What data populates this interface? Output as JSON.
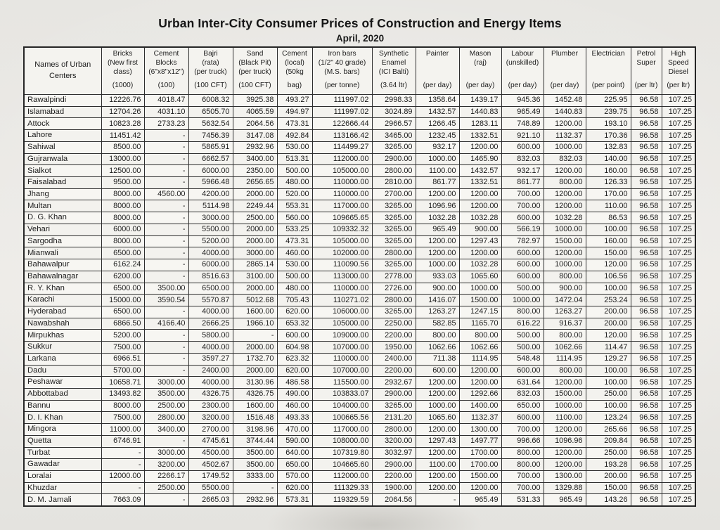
{
  "page": {
    "title": "Urban Inter-City Consumer Prices of Construction and Energy Items",
    "subtitle": "April, 2020"
  },
  "table": {
    "row_header_label": "Names of Urban\nCenters",
    "columns": [
      {
        "name": "Bricks\n(New first\nclass)",
        "unit": "(1000)"
      },
      {
        "name": "Cement\nBlocks\n(6\"x8\"x12\")",
        "unit": "(100)"
      },
      {
        "name": "Bajri\n(rata)\n(per truck)",
        "unit": "(100 CFT)"
      },
      {
        "name": "Sand\n(Black Pit)\n(per truck)",
        "unit": "(100 CFT)"
      },
      {
        "name": "Cement\n(local)\n(50kg",
        "unit": "bag)"
      },
      {
        "name": "Iron bars\n(1/2\" 40 grade)\n(M.S. bars)",
        "unit": "(per tonne)"
      },
      {
        "name": "Synthetic\nEnamel\n(ICI Balti)",
        "unit": "(3.64 ltr)"
      },
      {
        "name": "Painter",
        "unit": "(per day)"
      },
      {
        "name": "Mason\n(raj)",
        "unit": "(per day)"
      },
      {
        "name": "Labour\n(unskilled)",
        "unit": "(per day)"
      },
      {
        "name": "Plumber",
        "unit": "(per day)"
      },
      {
        "name": "Electrician",
        "unit": "(per point)"
      },
      {
        "name": "Petrol\nSuper",
        "unit": "(per ltr)"
      },
      {
        "name": "High\nSpeed\nDiesel",
        "unit": "(per ltr)"
      }
    ],
    "rows": [
      {
        "city": "Rawalpindi",
        "values": [
          "12226.76",
          "4018.47",
          "6008.32",
          "3925.38",
          "493.27",
          "111997.02",
          "2998.33",
          "1358.64",
          "1439.17",
          "945.36",
          "1452.48",
          "225.95",
          "96.58",
          "107.25"
        ]
      },
      {
        "city": "Islamabad",
        "values": [
          "12704.26",
          "4031.10",
          "6505.70",
          "4065.59",
          "494.97",
          "111997.02",
          "3024.89",
          "1432.57",
          "1440.83",
          "965.49",
          "1440.83",
          "239.75",
          "96.58",
          "107.25"
        ]
      },
      {
        "city": "Attock",
        "values": [
          "10823.28",
          "2733.23",
          "5632.54",
          "2064.56",
          "473.31",
          "122666.44",
          "2966.57",
          "1266.45",
          "1283.11",
          "748.89",
          "1200.00",
          "193.10",
          "96.58",
          "107.25"
        ]
      },
      {
        "city": "Lahore",
        "values": [
          "11451.42",
          "-",
          "7456.39",
          "3147.08",
          "492.84",
          "113166.42",
          "3465.00",
          "1232.45",
          "1332.51",
          "921.10",
          "1132.37",
          "170.36",
          "96.58",
          "107.25"
        ]
      },
      {
        "city": "Sahiwal",
        "values": [
          "8500.00",
          "-",
          "5865.91",
          "2932.96",
          "530.00",
          "114499.27",
          "3265.00",
          "932.17",
          "1200.00",
          "600.00",
          "1000.00",
          "132.83",
          "96.58",
          "107.25"
        ]
      },
      {
        "city": "Gujranwala",
        "values": [
          "13000.00",
          "-",
          "6662.57",
          "3400.00",
          "513.31",
          "112000.00",
          "2900.00",
          "1000.00",
          "1465.90",
          "832.03",
          "832.03",
          "140.00",
          "96.58",
          "107.25"
        ]
      },
      {
        "city": "Sialkot",
        "values": [
          "12500.00",
          "-",
          "6000.00",
          "2350.00",
          "500.00",
          "105000.00",
          "2800.00",
          "1100.00",
          "1432.57",
          "932.17",
          "1200.00",
          "160.00",
          "96.58",
          "107.25"
        ]
      },
      {
        "city": "Faisalabad",
        "values": [
          "9500.00",
          "-",
          "5966.48",
          "2656.65",
          "480.00",
          "110000.00",
          "2810.00",
          "861.77",
          "1332.51",
          "861.77",
          "800.00",
          "126.33",
          "96.58",
          "107.25"
        ]
      },
      {
        "city": "Jhang",
        "values": [
          "8000.00",
          "4560.00",
          "4200.00",
          "2000.00",
          "520.00",
          "110000.00",
          "2700.00",
          "1200.00",
          "1200.00",
          "700.00",
          "1200.00",
          "170.00",
          "96.58",
          "107.25"
        ]
      },
      {
        "city": "Multan",
        "values": [
          "8000.00",
          "-",
          "5114.98",
          "2249.44",
          "553.31",
          "117000.00",
          "3265.00",
          "1096.96",
          "1200.00",
          "700.00",
          "1200.00",
          "110.00",
          "96.58",
          "107.25"
        ]
      },
      {
        "city": "D. G. Khan",
        "values": [
          "8000.00",
          "-",
          "3000.00",
          "2500.00",
          "560.00",
          "109665.65",
          "3265.00",
          "1032.28",
          "1032.28",
          "600.00",
          "1032.28",
          "86.53",
          "96.58",
          "107.25"
        ]
      },
      {
        "city": "Vehari",
        "values": [
          "6000.00",
          "-",
          "5500.00",
          "2000.00",
          "533.25",
          "109332.32",
          "3265.00",
          "965.49",
          "900.00",
          "566.19",
          "1000.00",
          "100.00",
          "96.58",
          "107.25"
        ]
      },
      {
        "city": "Sargodha",
        "values": [
          "8000.00",
          "-",
          "5200.00",
          "2000.00",
          "473.31",
          "105000.00",
          "3265.00",
          "1200.00",
          "1297.43",
          "782.97",
          "1500.00",
          "160.00",
          "96.58",
          "107.25"
        ]
      },
      {
        "city": "Mianwali",
        "values": [
          "6500.00",
          "-",
          "4000.00",
          "3000.00",
          "460.00",
          "102000.00",
          "2800.00",
          "1200.00",
          "1200.00",
          "600.00",
          "1200.00",
          "150.00",
          "96.58",
          "107.25"
        ]
      },
      {
        "city": "Bahawalpur",
        "values": [
          "6162.24",
          "-",
          "6000.00",
          "2865.14",
          "530.00",
          "110090.56",
          "3265.00",
          "1000.00",
          "1032.28",
          "600.00",
          "1000.00",
          "120.00",
          "96.58",
          "107.25"
        ]
      },
      {
        "city": "Bahawalnagar",
        "values": [
          "6200.00",
          "-",
          "8516.63",
          "3100.00",
          "500.00",
          "113000.00",
          "2778.00",
          "933.03",
          "1065.60",
          "600.00",
          "800.00",
          "106.56",
          "96.58",
          "107.25"
        ]
      },
      {
        "city": "R. Y. Khan",
        "values": [
          "6500.00",
          "3500.00",
          "6500.00",
          "2000.00",
          "480.00",
          "110000.00",
          "2726.00",
          "900.00",
          "1000.00",
          "500.00",
          "900.00",
          "100.00",
          "96.58",
          "107.25"
        ]
      },
      {
        "city": "Karachi",
        "values": [
          "15000.00",
          "3590.54",
          "5570.87",
          "5012.68",
          "705.43",
          "110271.02",
          "2800.00",
          "1416.07",
          "1500.00",
          "1000.00",
          "1472.04",
          "253.24",
          "96.58",
          "107.25"
        ]
      },
      {
        "city": "Hyderabad",
        "values": [
          "6500.00",
          "-",
          "4000.00",
          "1600.00",
          "620.00",
          "106000.00",
          "3265.00",
          "1263.27",
          "1247.15",
          "800.00",
          "1263.27",
          "200.00",
          "96.58",
          "107.25"
        ]
      },
      {
        "city": "Nawabshah",
        "values": [
          "6866.50",
          "4166.40",
          "2666.25",
          "1966.10",
          "653.32",
          "105000.00",
          "2250.00",
          "582.85",
          "1165.70",
          "616.22",
          "916.37",
          "200.00",
          "96.58",
          "107.25"
        ]
      },
      {
        "city": "Mirpukhas",
        "values": [
          "5200.00",
          "-",
          "5800.00",
          "-",
          "600.00",
          "109000.00",
          "2200.00",
          "800.00",
          "800.00",
          "500.00",
          "800.00",
          "120.00",
          "96.58",
          "107.25"
        ]
      },
      {
        "city": "Sukkur",
        "values": [
          "7500.00",
          "-",
          "4000.00",
          "2000.00",
          "604.98",
          "107000.00",
          "1950.00",
          "1062.66",
          "1062.66",
          "500.00",
          "1062.66",
          "114.47",
          "96.58",
          "107.25"
        ]
      },
      {
        "city": "Larkana",
        "values": [
          "6966.51",
          "-",
          "3597.27",
          "1732.70",
          "623.32",
          "110000.00",
          "2400.00",
          "711.38",
          "1114.95",
          "548.48",
          "1114.95",
          "129.27",
          "96.58",
          "107.25"
        ]
      },
      {
        "city": "Dadu",
        "values": [
          "5700.00",
          "-",
          "2400.00",
          "2000.00",
          "620.00",
          "107000.00",
          "2200.00",
          "600.00",
          "1200.00",
          "600.00",
          "800.00",
          "100.00",
          "96.58",
          "107.25"
        ]
      },
      {
        "city": "Peshawar",
        "values": [
          "10658.71",
          "3000.00",
          "4000.00",
          "3130.96",
          "486.58",
          "115500.00",
          "2932.67",
          "1200.00",
          "1200.00",
          "631.64",
          "1200.00",
          "100.00",
          "96.58",
          "107.25"
        ]
      },
      {
        "city": "Abbottabad",
        "values": [
          "13493.82",
          "3500.00",
          "4326.75",
          "4326.75",
          "490.00",
          "103833.07",
          "2900.00",
          "1200.00",
          "1292.66",
          "832.03",
          "1500.00",
          "250.00",
          "96.58",
          "107.25"
        ]
      },
      {
        "city": "Bannu",
        "values": [
          "8000.00",
          "2500.00",
          "2300.00",
          "1600.00",
          "460.00",
          "104000.00",
          "3265.00",
          "1000.00",
          "1400.00",
          "650.00",
          "1000.00",
          "100.00",
          "96.58",
          "107.25"
        ]
      },
      {
        "city": "D. I. Khan",
        "values": [
          "7500.00",
          "2800.00",
          "3200.00",
          "1516.48",
          "493.33",
          "100665.56",
          "2131.20",
          "1065.60",
          "1132.37",
          "600.00",
          "1100.00",
          "123.24",
          "96.58",
          "107.25"
        ]
      },
      {
        "city": "Mingora",
        "values": [
          "11000.00",
          "3400.00",
          "2700.00",
          "3198.96",
          "470.00",
          "117000.00",
          "2800.00",
          "1200.00",
          "1300.00",
          "700.00",
          "1200.00",
          "265.66",
          "96.58",
          "107.25"
        ]
      },
      {
        "city": "Quetta",
        "values": [
          "6746.91",
          "-",
          "4745.61",
          "3744.44",
          "590.00",
          "108000.00",
          "3200.00",
          "1297.43",
          "1497.77",
          "996.66",
          "1096.96",
          "209.84",
          "96.58",
          "107.25"
        ]
      },
      {
        "city": "Turbat",
        "values": [
          "-",
          "3000.00",
          "4500.00",
          "3500.00",
          "640.00",
          "107319.80",
          "3032.97",
          "1200.00",
          "1700.00",
          "800.00",
          "1200.00",
          "250.00",
          "96.58",
          "107.25"
        ]
      },
      {
        "city": "Gawadar",
        "values": [
          "-",
          "3200.00",
          "4502.67",
          "3500.00",
          "650.00",
          "104665.60",
          "2900.00",
          "1100.00",
          "1700.00",
          "800.00",
          "1200.00",
          "193.28",
          "96.58",
          "107.25"
        ]
      },
      {
        "city": "Loralai",
        "values": [
          "12000.00",
          "2266.17",
          "1749.52",
          "3333.00",
          "570.00",
          "112000.00",
          "2200.00",
          "1200.00",
          "1500.00",
          "700.00",
          "1300.00",
          "200.00",
          "96.58",
          "107.25"
        ]
      },
      {
        "city": "Khuzdar",
        "values": [
          "-",
          "2500.00",
          "5500.00",
          "-",
          "620.00",
          "111329.33",
          "1900.00",
          "1200.00",
          "1200.00",
          "700.00",
          "1329.88",
          "150.00",
          "96.58",
          "107.25"
        ]
      },
      {
        "city": "D. M. Jamali",
        "values": [
          "7663.09",
          "-",
          "2665.03",
          "2932.96",
          "573.31",
          "119329.59",
          "2064.56",
          "-",
          "965.49",
          "531.33",
          "965.49",
          "143.26",
          "96.58",
          "107.25"
        ]
      }
    ]
  }
}
